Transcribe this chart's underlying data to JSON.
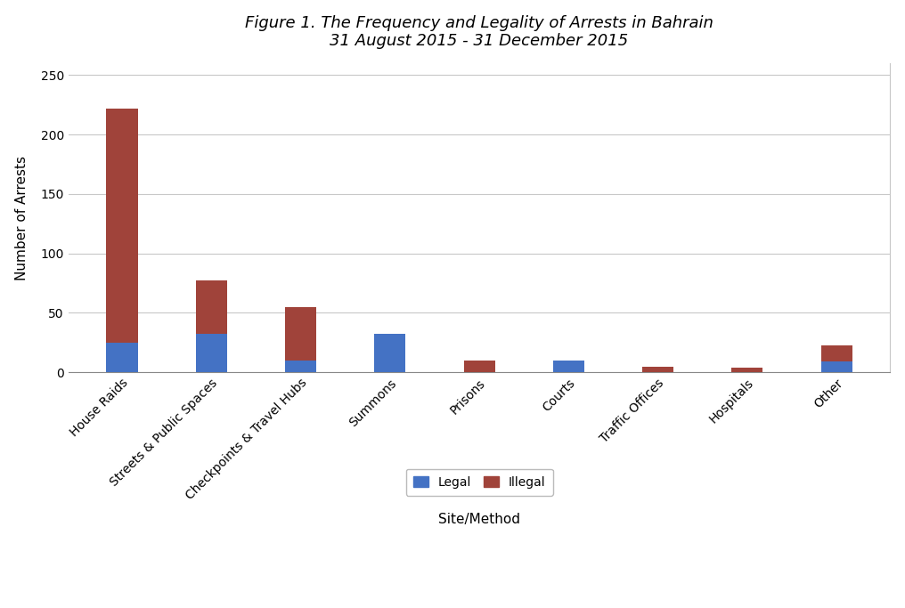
{
  "categories": [
    "House Raids",
    "Streets & Public Spaces",
    "Checkpoints & Travel Hubs",
    "Summons",
    "Prisons",
    "Courts",
    "Traffic Offices",
    "Hospitals",
    "Other"
  ],
  "legal": [
    25,
    32,
    10,
    32,
    0,
    10,
    0,
    0,
    9
  ],
  "illegal": [
    197,
    45,
    45,
    0,
    10,
    0,
    5,
    4,
    14
  ],
  "legal_color": "#4472C4",
  "illegal_color": "#A0433A",
  "title_line1": "Figure 1. The Frequency and Legality of Arrests in Bahrain",
  "title_line2": "31 August 2015 - 31 December 2015",
  "ylabel": "Number of Arrests",
  "xlabel": "Site/Method",
  "legend_labels": [
    "Legal",
    "Illegal"
  ],
  "ylim": [
    0,
    260
  ],
  "yticks": [
    0,
    50,
    100,
    150,
    200,
    250
  ],
  "background_color": "#ffffff",
  "grid_color": "#c8c8c8",
  "title_fontsize": 13,
  "axis_fontsize": 11,
  "tick_fontsize": 10,
  "bar_width": 0.35
}
